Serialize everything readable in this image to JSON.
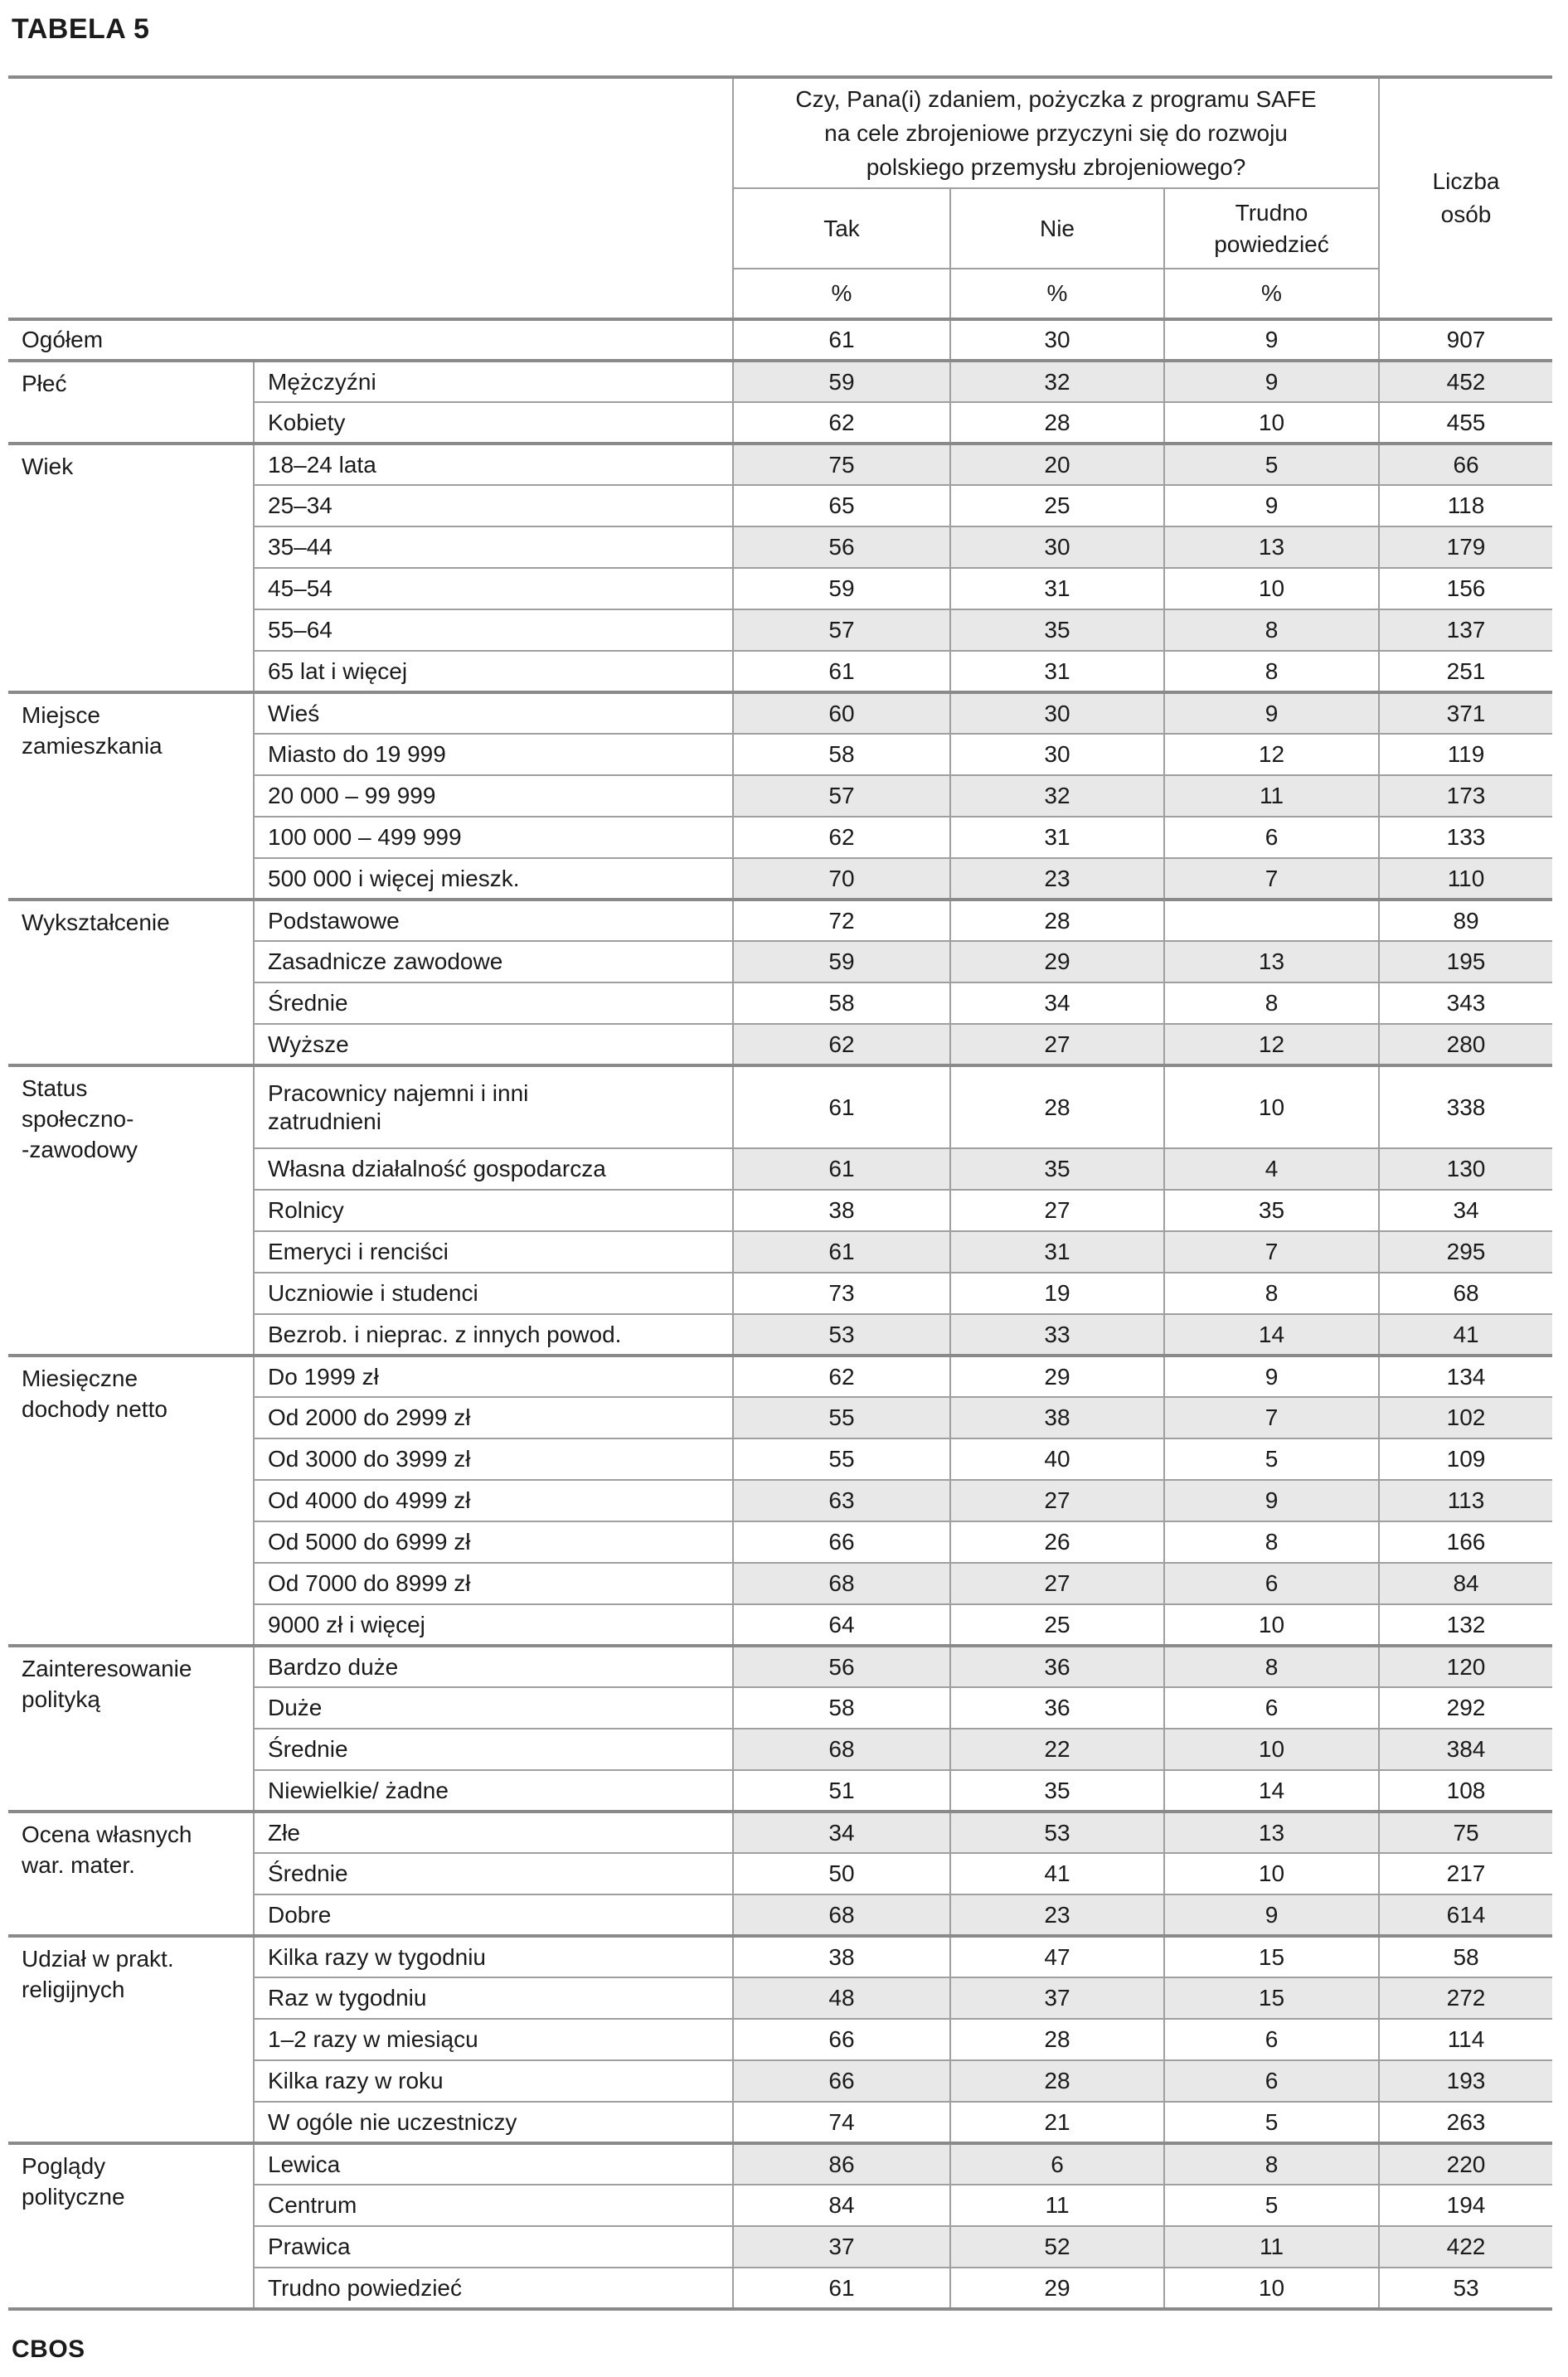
{
  "title": "TABELA 5",
  "footer": "CBOS",
  "header": {
    "question": "Czy, Pana(i) zdaniem, pożyczka z programu SAFE\nna cele zbrojeniowe przyczyni się do rozwoju\npolskiego przemysłu zbrojeniowego?",
    "col_tak": "Tak",
    "col_nie": "Nie",
    "col_trudno": "Trudno\npowiedzieć",
    "col_liczba": "Liczba\nosób",
    "percent": "%"
  },
  "colors": {
    "row_shade": "#e8e8e8",
    "border_thin": "#9f9f9f",
    "border_thick": "#8a8a8a",
    "text": "#1b1b1b"
  },
  "groups": [
    {
      "label": "",
      "rows": [
        {
          "category": "Ogółem",
          "full_span": true,
          "tak": "61",
          "nie": "30",
          "trudno": "9",
          "liczba": "907"
        }
      ]
    },
    {
      "label": "Płeć",
      "rows": [
        {
          "category": "Mężczyźni",
          "tak": "59",
          "nie": "32",
          "trudno": "9",
          "liczba": "452"
        },
        {
          "category": "Kobiety",
          "tak": "62",
          "nie": "28",
          "trudno": "10",
          "liczba": "455"
        }
      ]
    },
    {
      "label": "Wiek",
      "rows": [
        {
          "category": "18–24 lata",
          "tak": "75",
          "nie": "20",
          "trudno": "5",
          "liczba": "66"
        },
        {
          "category": "25–34",
          "tak": "65",
          "nie": "25",
          "trudno": "9",
          "liczba": "118"
        },
        {
          "category": "35–44",
          "tak": "56",
          "nie": "30",
          "trudno": "13",
          "liczba": "179"
        },
        {
          "category": "45–54",
          "tak": "59",
          "nie": "31",
          "trudno": "10",
          "liczba": "156"
        },
        {
          "category": "55–64",
          "tak": "57",
          "nie": "35",
          "trudno": "8",
          "liczba": "137"
        },
        {
          "category": "65 lat i więcej",
          "tak": "61",
          "nie": "31",
          "trudno": "8",
          "liczba": "251"
        }
      ]
    },
    {
      "label": "Miejsce\nzamieszkania",
      "rows": [
        {
          "category": "Wieś",
          "tak": "60",
          "nie": "30",
          "trudno": "9",
          "liczba": "371"
        },
        {
          "category": "Miasto do 19 999",
          "tak": "58",
          "nie": "30",
          "trudno": "12",
          "liczba": "119"
        },
        {
          "category": "20 000 – 99 999",
          "tak": "57",
          "nie": "32",
          "trudno": "11",
          "liczba": "173"
        },
        {
          "category": "100 000 – 499 999",
          "tak": "62",
          "nie": "31",
          "trudno": "6",
          "liczba": "133"
        },
        {
          "category": "500 000 i więcej mieszk.",
          "tak": "70",
          "nie": "23",
          "trudno": "7",
          "liczba": "110"
        }
      ]
    },
    {
      "label": "Wykształcenie",
      "rows": [
        {
          "category": "Podstawowe",
          "tak": "72",
          "nie": "28",
          "trudno": "",
          "liczba": "89"
        },
        {
          "category": "Zasadnicze zawodowe",
          "tak": "59",
          "nie": "29",
          "trudno": "13",
          "liczba": "195"
        },
        {
          "category": "Średnie",
          "tak": "58",
          "nie": "34",
          "trudno": "8",
          "liczba": "343"
        },
        {
          "category": "Wyższe",
          "tak": "62",
          "nie": "27",
          "trudno": "12",
          "liczba": "280"
        }
      ]
    },
    {
      "label": "Status\nspołeczno-\n-zawodowy",
      "rows": [
        {
          "category": "Pracownicy najemni i inni\nzatrudnieni",
          "tak": "61",
          "nie": "28",
          "trudno": "10",
          "liczba": "338"
        },
        {
          "category": "Własna działalność gospodarcza",
          "tak": "61",
          "nie": "35",
          "trudno": "4",
          "liczba": "130"
        },
        {
          "category": "Rolnicy",
          "tak": "38",
          "nie": "27",
          "trudno": "35",
          "liczba": "34"
        },
        {
          "category": "Emeryci i renciści",
          "tak": "61",
          "nie": "31",
          "trudno": "7",
          "liczba": "295"
        },
        {
          "category": "Uczniowie i studenci",
          "tak": "73",
          "nie": "19",
          "trudno": "8",
          "liczba": "68"
        },
        {
          "category": "Bezrob. i nieprac. z innych powod.",
          "tak": "53",
          "nie": "33",
          "trudno": "14",
          "liczba": "41"
        }
      ]
    },
    {
      "label": "Miesięczne\ndochody netto",
      "rows": [
        {
          "category": "Do 1999 zł",
          "tak": "62",
          "nie": "29",
          "trudno": "9",
          "liczba": "134"
        },
        {
          "category": "Od 2000 do 2999 zł",
          "tak": "55",
          "nie": "38",
          "trudno": "7",
          "liczba": "102"
        },
        {
          "category": "Od 3000 do 3999 zł",
          "tak": "55",
          "nie": "40",
          "trudno": "5",
          "liczba": "109"
        },
        {
          "category": "Od 4000 do 4999 zł",
          "tak": "63",
          "nie": "27",
          "trudno": "9",
          "liczba": "113"
        },
        {
          "category": "Od 5000 do 6999 zł",
          "tak": "66",
          "nie": "26",
          "trudno": "8",
          "liczba": "166"
        },
        {
          "category": "Od 7000 do 8999 zł",
          "tak": "68",
          "nie": "27",
          "trudno": "6",
          "liczba": "84"
        },
        {
          "category": "9000 zł i więcej",
          "tak": "64",
          "nie": "25",
          "trudno": "10",
          "liczba": "132"
        }
      ]
    },
    {
      "label": "Zainteresowanie\npolityką",
      "rows": [
        {
          "category": "Bardzo duże",
          "tak": "56",
          "nie": "36",
          "trudno": "8",
          "liczba": "120"
        },
        {
          "category": "Duże",
          "tak": "58",
          "nie": "36",
          "trudno": "6",
          "liczba": "292"
        },
        {
          "category": "Średnie",
          "tak": "68",
          "nie": "22",
          "trudno": "10",
          "liczba": "384"
        },
        {
          "category": "Niewielkie/ żadne",
          "tak": "51",
          "nie": "35",
          "trudno": "14",
          "liczba": "108"
        }
      ]
    },
    {
      "label": "Ocena własnych\nwar. mater.",
      "rows": [
        {
          "category": "Złe",
          "tak": "34",
          "nie": "53",
          "trudno": "13",
          "liczba": "75"
        },
        {
          "category": "Średnie",
          "tak": "50",
          "nie": "41",
          "trudno": "10",
          "liczba": "217"
        },
        {
          "category": "Dobre",
          "tak": "68",
          "nie": "23",
          "trudno": "9",
          "liczba": "614"
        }
      ]
    },
    {
      "label": "Udział w prakt.\nreligijnych",
      "rows": [
        {
          "category": "Kilka razy w tygodniu",
          "tak": "38",
          "nie": "47",
          "trudno": "15",
          "liczba": "58"
        },
        {
          "category": "Raz w tygodniu",
          "tak": "48",
          "nie": "37",
          "trudno": "15",
          "liczba": "272"
        },
        {
          "category": "1–2 razy w miesiącu",
          "tak": "66",
          "nie": "28",
          "trudno": "6",
          "liczba": "114"
        },
        {
          "category": "Kilka razy w roku",
          "tak": "66",
          "nie": "28",
          "trudno": "6",
          "liczba": "193"
        },
        {
          "category": "W ogóle nie uczestniczy",
          "tak": "74",
          "nie": "21",
          "trudno": "5",
          "liczba": "263"
        }
      ]
    },
    {
      "label": "Poglądy\npolityczne",
      "rows": [
        {
          "category": "Lewica",
          "tak": "86",
          "nie": "6",
          "trudno": "8",
          "liczba": "220"
        },
        {
          "category": "Centrum",
          "tak": "84",
          "nie": "11",
          "trudno": "5",
          "liczba": "194"
        },
        {
          "category": "Prawica",
          "tak": "37",
          "nie": "52",
          "trudno": "11",
          "liczba": "422"
        },
        {
          "category": "Trudno powiedzieć",
          "tak": "61",
          "nie": "29",
          "trudno": "10",
          "liczba": "53"
        }
      ]
    }
  ]
}
